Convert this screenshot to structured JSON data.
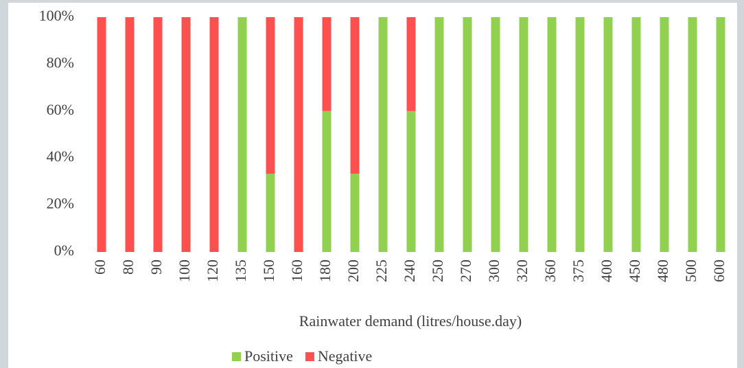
{
  "chart_data": {
    "type": "stacked-bar-100",
    "x_label": "Rainwater demand (litres/house.day)",
    "categories": [
      "60",
      "80",
      "90",
      "100",
      "120",
      "135",
      "150",
      "160",
      "180",
      "200",
      "225",
      "240",
      "250",
      "270",
      "300",
      "320",
      "360",
      "375",
      "400",
      "450",
      "480",
      "500",
      "600"
    ],
    "series": [
      {
        "name": "Positive",
        "color": "#92d050",
        "values": [
          0,
          0,
          0,
          0,
          0,
          100,
          33.3,
          0,
          60,
          33.3,
          100,
          60,
          100,
          100,
          100,
          100,
          100,
          100,
          100,
          100,
          100,
          100,
          100
        ]
      },
      {
        "name": "Negative",
        "color": "#ff5050",
        "values": [
          100,
          100,
          100,
          100,
          100,
          0,
          66.7,
          100,
          40,
          66.7,
          0,
          40,
          0,
          0,
          0,
          0,
          0,
          0,
          0,
          0,
          0,
          0,
          0
        ]
      }
    ],
    "ylim": [
      0,
      100
    ],
    "yticks": [
      {
        "value": 0,
        "label": "0%"
      },
      {
        "value": 20,
        "label": "20%"
      },
      {
        "value": 40,
        "label": "40%"
      },
      {
        "value": 60,
        "label": "60%"
      },
      {
        "value": 80,
        "label": "80%"
      },
      {
        "value": 100,
        "label": "100%"
      }
    ],
    "legend": "bottom"
  }
}
